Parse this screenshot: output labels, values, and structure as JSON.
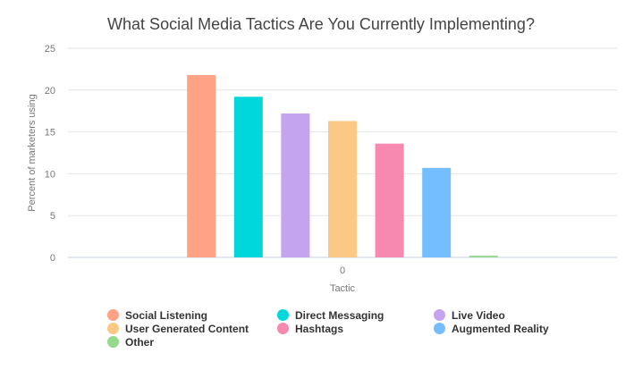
{
  "chart_data": {
    "type": "bar",
    "title": "What Social Media Tactics Are You Currently Implementing?",
    "xlabel": "Tactic",
    "ylabel": "Percent of marketers using",
    "categories": [
      "0"
    ],
    "ylim": [
      0,
      25
    ],
    "yticks": [
      0,
      5,
      10,
      15,
      20,
      25
    ],
    "grid": true,
    "legend_position": "bottom",
    "series": [
      {
        "name": "Social Listening",
        "values": [
          21.8
        ],
        "color": "#FFA286"
      },
      {
        "name": "Direct Messaging",
        "values": [
          19.2
        ],
        "color": "#00D7DC"
      },
      {
        "name": "Live Video",
        "values": [
          17.2
        ],
        "color": "#C4A4EF"
      },
      {
        "name": "User Generated Content",
        "values": [
          16.3
        ],
        "color": "#FBC886"
      },
      {
        "name": "Hashtags",
        "values": [
          13.6
        ],
        "color": "#F788B0"
      },
      {
        "name": "Augmented Reality",
        "values": [
          10.7
        ],
        "color": "#74BEFF"
      },
      {
        "name": "Other",
        "values": [
          0.2
        ],
        "color": "#95D98D"
      }
    ]
  }
}
